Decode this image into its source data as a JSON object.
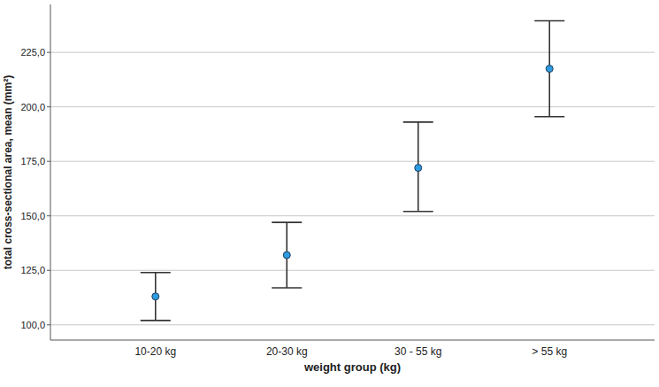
{
  "chart_data": {
    "type": "errorbar",
    "x_label": "weight group (kg)",
    "y_label": "total cross-sectional area, mean (mm²)",
    "categories": [
      "10-20 kg",
      "20-30 kg",
      "30 - 55 kg",
      "> 55 kg"
    ],
    "values": [
      113,
      132,
      172,
      217.5
    ],
    "ci_lower": [
      102,
      117,
      152,
      195.5
    ],
    "ci_upper": [
      124,
      147,
      193,
      239.5
    ],
    "color": "#2e9be0",
    "marker": "circle",
    "ylim": [
      93,
      247
    ],
    "yticks": [
      {
        "value": 100,
        "label": "100,0"
      },
      {
        "value": 125,
        "label": "125,0"
      },
      {
        "value": 150,
        "label": "150,0"
      },
      {
        "value": 175,
        "label": "175,0"
      },
      {
        "value": 200,
        "label": "200,0"
      },
      {
        "value": 225,
        "label": "225,0"
      }
    ],
    "grid": true
  }
}
